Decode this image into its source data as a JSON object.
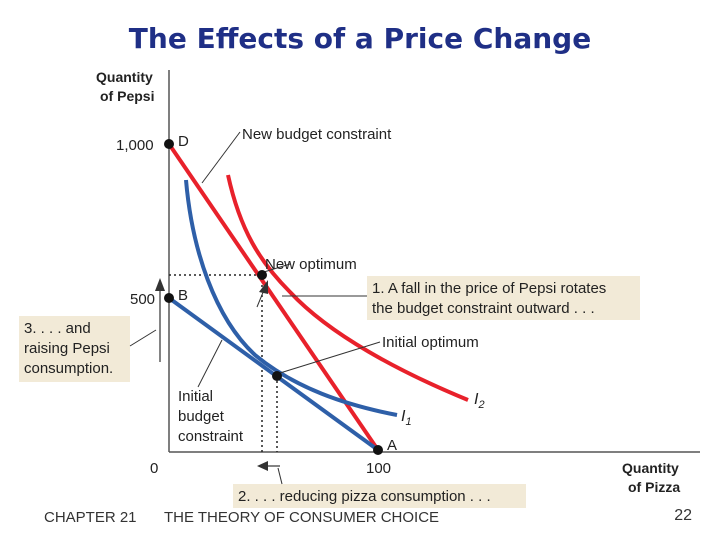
{
  "title": "The Effects of a Price Change",
  "axes": {
    "y_label_line1": "Quantity",
    "y_label_line2": "of Pepsi",
    "x_label_line1": "Quantity",
    "x_label_line2": "of Pizza",
    "origin": "0",
    "y_tick_high": "1,000",
    "y_tick_mid": "500",
    "x_tick": "100"
  },
  "points": {
    "d": "D",
    "b": "B",
    "a": "A"
  },
  "labels": {
    "new_budget": "New budget constraint",
    "new_optimum": "New optimum",
    "initial_optimum": "Initial optimum",
    "initial_budget_1": "Initial",
    "initial_budget_2": "budget",
    "initial_budget_3": "constraint",
    "i1": "I",
    "i1_sub": "1",
    "i2": "I",
    "i2_sub": "2"
  },
  "callouts": {
    "box1_line1": "1. A fall in the price of Pepsi rotates",
    "box1_line2": "the budget constraint outward . . .",
    "box2": "2. . . . reducing pizza consumption . . .",
    "box3_line1": "3. . . . and",
    "box3_line2": "raising Pepsi",
    "box3_line3": "consumption."
  },
  "colors": {
    "red_curve": "#e8212b",
    "blue_curve": "#2e5fa8",
    "callout_bg": "#f2ead7",
    "title": "#1f2f86"
  },
  "footer": {
    "chapter": "CHAPTER 21",
    "subtitle": "THE THEORY OF CONSUMER CHOICE",
    "page": "22"
  }
}
